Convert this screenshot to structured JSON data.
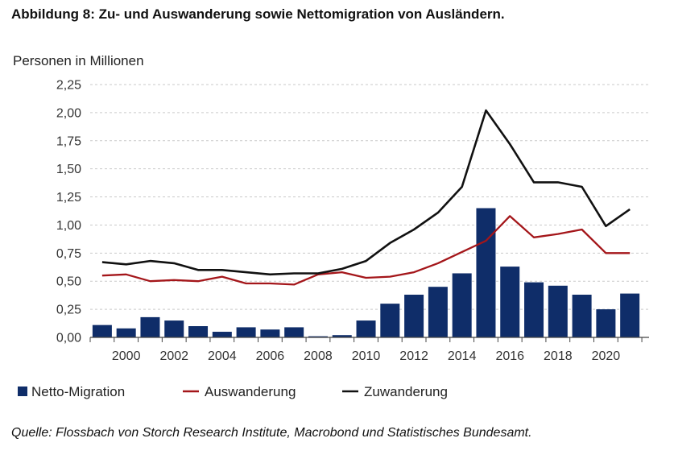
{
  "title": "Abbildung 8: Zu- und Auswanderung sowie Nettomigration von Ausländern.",
  "source": "Quelle: Flossbach von Storch Research Institute, Macrobond und Statistisches Bundesamt.",
  "colors": {
    "bar": "#0f2d69",
    "auswanderung": "#a4161a",
    "zuwanderung": "#111111",
    "grid": "#c9c9c9"
  },
  "chart_data": {
    "type": "bar",
    "ylabel": "Personen in Millionen",
    "ylim": [
      0,
      2.25
    ],
    "yticks": [
      0,
      0.25,
      0.5,
      0.75,
      1.0,
      1.25,
      1.5,
      1.75,
      2.0,
      2.25
    ],
    "yticklabels": [
      "0,00",
      "0,25",
      "0,50",
      "0,75",
      "1,00",
      "1,25",
      "1,50",
      "1,75",
      "2,00",
      "2,25"
    ],
    "xticklabels": [
      "2000",
      "2002",
      "2004",
      "2006",
      "2008",
      "2010",
      "2012",
      "2014",
      "2016",
      "2018",
      "2020"
    ],
    "grid": true,
    "legend_position": "bottom",
    "x": [
      1999,
      2000,
      2001,
      2002,
      2003,
      2004,
      2005,
      2006,
      2007,
      2008,
      2009,
      2010,
      2011,
      2012,
      2013,
      2014,
      2015,
      2016,
      2017,
      2018,
      2019,
      2020,
      2021
    ],
    "series": [
      {
        "name": "Netto-Migration",
        "type": "bar",
        "values": [
          0.11,
          0.08,
          0.18,
          0.15,
          0.1,
          0.05,
          0.09,
          0.07,
          0.09,
          0.01,
          0.02,
          0.15,
          0.3,
          0.38,
          0.45,
          0.57,
          1.15,
          0.63,
          0.49,
          0.46,
          0.38,
          0.25,
          0.39
        ]
      },
      {
        "name": "Auswanderung",
        "type": "line",
        "values": [
          0.55,
          0.56,
          0.5,
          0.51,
          0.5,
          0.54,
          0.48,
          0.48,
          0.47,
          0.56,
          0.58,
          0.53,
          0.54,
          0.58,
          0.66,
          0.76,
          0.86,
          1.08,
          0.89,
          0.92,
          0.96,
          0.75,
          0.75
        ]
      },
      {
        "name": "Zuwanderung",
        "type": "line",
        "values": [
          0.67,
          0.65,
          0.68,
          0.66,
          0.6,
          0.6,
          0.58,
          0.56,
          0.57,
          0.57,
          0.61,
          0.68,
          0.84,
          0.96,
          1.11,
          1.34,
          2.02,
          1.72,
          1.38,
          1.38,
          1.34,
          0.99,
          1.14
        ]
      }
    ]
  }
}
